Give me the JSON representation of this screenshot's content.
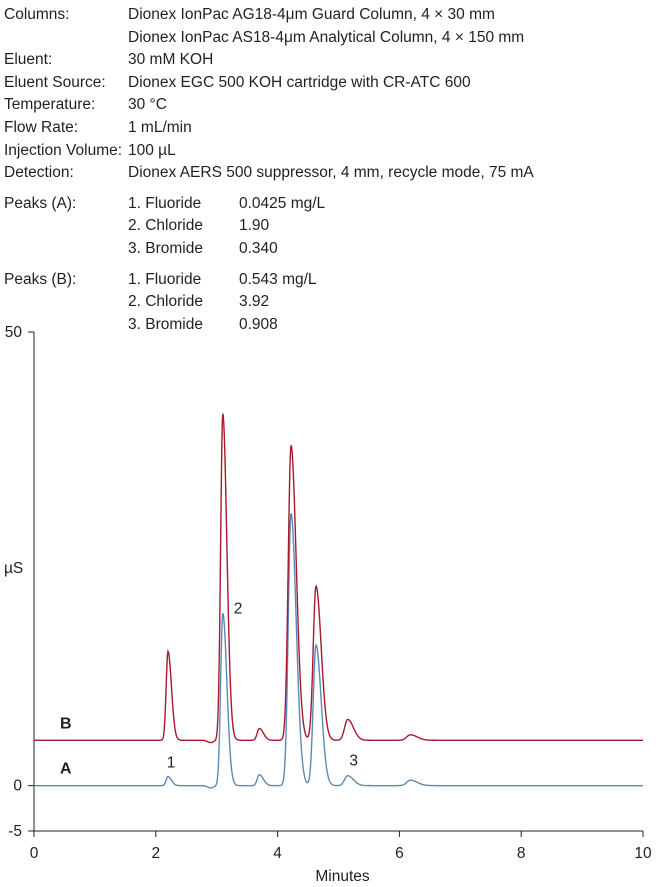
{
  "conditions": [
    {
      "label": "Columns:",
      "value": "Dionex IonPac AG18-4μm Guard Column, 4 × 30 mm"
    },
    {
      "label": "",
      "value": "Dionex IonPac AS18-4μm Analytical Column, 4 × 150 mm"
    },
    {
      "label": "Eluent:",
      "value": "30 mM KOH"
    },
    {
      "label": "Eluent Source:",
      "value": "Dionex EGC 500 KOH cartridge with CR-ATC 600"
    },
    {
      "label": "Temperature:",
      "value": "30 °C"
    },
    {
      "label": "Flow Rate:",
      "value": "1 mL/min"
    },
    {
      "label": "Injection Volume:",
      "value": "100 µL"
    },
    {
      "label": "Detection:",
      "value": "Dionex AERS 500 suppressor, 4 mm, recycle mode, 75 mA"
    }
  ],
  "peaks_a": {
    "label": "Peaks (A):",
    "items": [
      {
        "name": "1. Fluoride",
        "value": "0.0425 mg/L"
      },
      {
        "name": "2. Chloride",
        "value": "1.90"
      },
      {
        "name": "3. Bromide",
        "value": "0.340"
      }
    ]
  },
  "peaks_b": {
    "label": "Peaks (B):",
    "items": [
      {
        "name": "1. Fluoride",
        "value": "0.543 mg/L"
      },
      {
        "name": "2. Chloride",
        "value": "3.92"
      },
      {
        "name": "3. Bromide",
        "value": "0.908"
      }
    ]
  },
  "chart_data": {
    "type": "line",
    "xlabel": "Minutes",
    "ylabel": "µS",
    "xlim": [
      0,
      10
    ],
    "ylim": [
      -5,
      50
    ],
    "x_ticks": [
      "0",
      "2",
      "4",
      "6",
      "8",
      "10"
    ],
    "y_ticks": [
      "-5",
      "0",
      "50"
    ],
    "grid": false,
    "series": [
      {
        "name": "A",
        "color": "#5b8ab5",
        "baseline": 0,
        "peaks": [
          {
            "t": 2.2,
            "h": 1.0,
            "w": 0.03
          },
          {
            "t": 3.1,
            "h": 19.0,
            "w": 0.035
          },
          {
            "t": 3.7,
            "h": 1.2,
            "w": 0.035
          },
          {
            "t": 4.22,
            "h": 30.0,
            "w": 0.045
          },
          {
            "t": 4.63,
            "h": 15.5,
            "w": 0.045
          },
          {
            "t": 5.15,
            "h": 1.1,
            "w": 0.05
          },
          {
            "t": 6.18,
            "h": 0.6,
            "w": 0.06
          }
        ]
      },
      {
        "name": "B",
        "color": "#a8192e",
        "baseline": 5,
        "peaks": [
          {
            "t": 2.2,
            "h": 9.8,
            "w": 0.03
          },
          {
            "t": 3.1,
            "h": 36.0,
            "w": 0.035
          },
          {
            "t": 3.7,
            "h": 1.3,
            "w": 0.035
          },
          {
            "t": 4.22,
            "h": 32.5,
            "w": 0.045
          },
          {
            "t": 4.63,
            "h": 17.0,
            "w": 0.045
          },
          {
            "t": 5.15,
            "h": 2.3,
            "w": 0.05
          },
          {
            "t": 6.18,
            "h": 0.6,
            "w": 0.06
          }
        ]
      }
    ],
    "peak_annotations": [
      {
        "text": "1",
        "x": 2.25,
        "y": 2.0
      },
      {
        "text": "2",
        "x": 3.35,
        "y": 19.0
      },
      {
        "text": "3",
        "x": 5.25,
        "y": 2.2
      }
    ]
  }
}
